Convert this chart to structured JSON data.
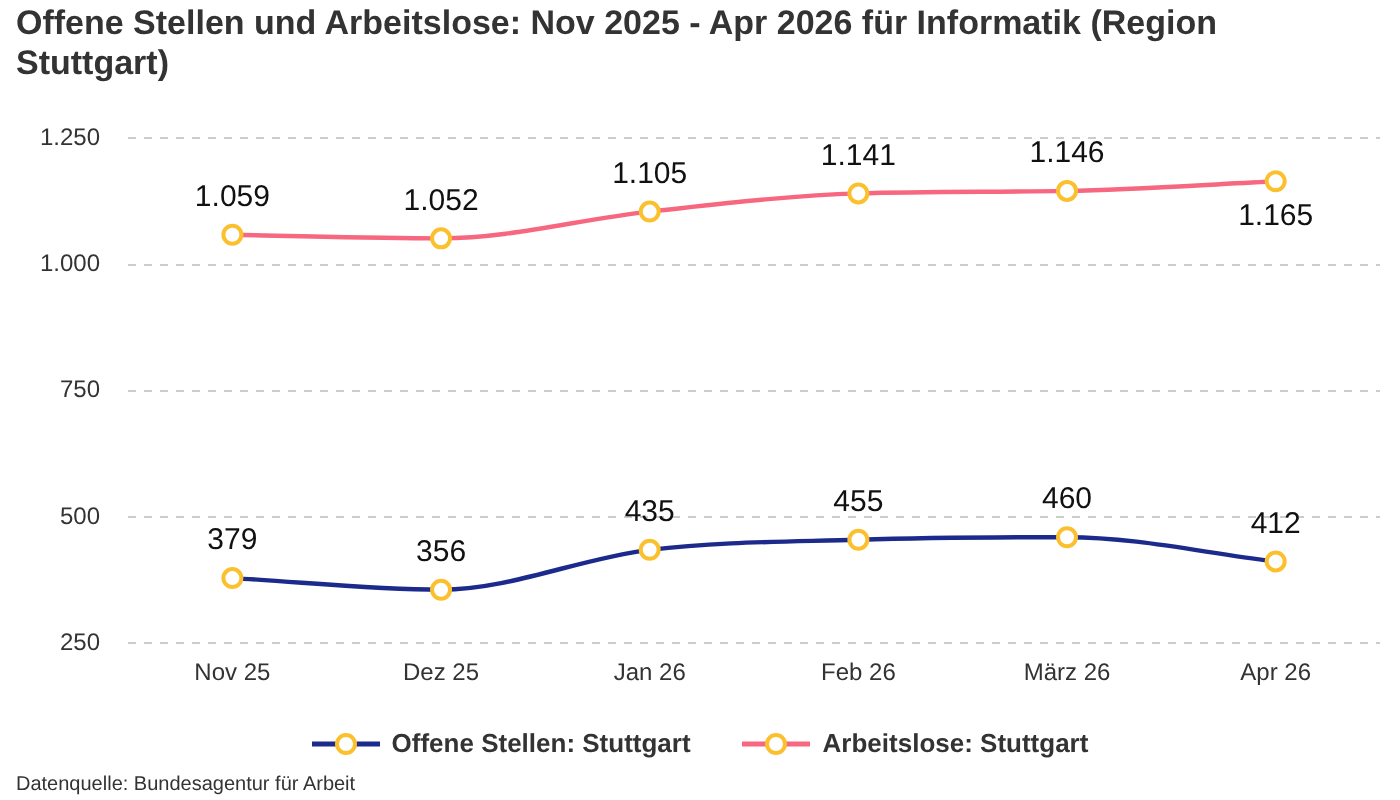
{
  "chart_data": {
    "type": "line",
    "title": "Offene Stellen und Arbeitslose: Nov 2025 - Apr 2026 für Informatik (Region Stuttgart)",
    "categories": [
      "Nov 25",
      "Dez 25",
      "Jan 26",
      "Feb 26",
      "März 26",
      "Apr 26"
    ],
    "series": [
      {
        "name": "Offene Stellen: Stuttgart",
        "color": "#1c2a8c",
        "values": [
          379,
          356,
          435,
          455,
          460,
          412
        ],
        "value_labels": [
          "379",
          "356",
          "435",
          "455",
          "460",
          "412"
        ]
      },
      {
        "name": "Arbeitslose: Stuttgart",
        "color": "#f7677f",
        "values": [
          1059,
          1052,
          1105,
          1141,
          1146,
          1165
        ],
        "value_labels": [
          "1.059",
          "1.052",
          "1.105",
          "1.141",
          "1.146",
          "1.165"
        ]
      }
    ],
    "ylim": [
      250,
      1250
    ],
    "yticks": [
      250,
      500,
      750,
      {
        "value": 1000,
        "label": "1.000"
      },
      {
        "value": 1250,
        "label": "1.250"
      }
    ],
    "grid": "y",
    "legend": "bottom",
    "marker": "circle",
    "line_style": "solid",
    "annotations": [
      "Datenquelle: Bundesagentur für Arbeit"
    ]
  }
}
